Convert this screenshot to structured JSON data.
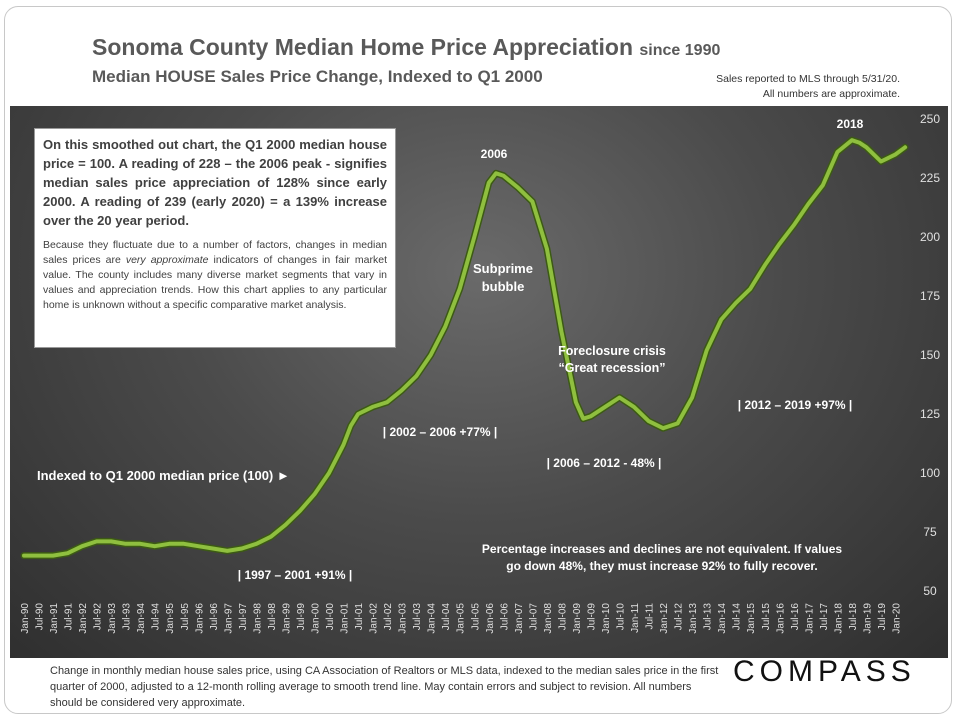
{
  "header": {
    "title": "Sonoma County Median Home Price Appreciation",
    "title_suffix": "since 1990",
    "subtitle": "Median HOUSE Sales Price Change, Indexed to Q1 2000",
    "note_line1": "Sales reported to MLS through 5/31/20.",
    "note_line2": "All numbers are approximate."
  },
  "infobox": {
    "para1": "On this smoothed out chart, the Q1 2000 median house price = 100. A reading of 228 – the 2006 peak - signifies median sales price appreciation of 128% since early 2000. A reading of 239 (early 2020) = a 139% increase over the 20 year period.",
    "para2_a": "Because they fluctuate due to a number of factors, changes in median sales prices are ",
    "para2_em": "very approximate",
    "para2_b": " indicators of changes in fair market value. The county includes many diverse market segments that vary in values and appreciation trends. How this chart applies to any particular home is unknown without a specific comparative market analysis."
  },
  "footer": {
    "text": "Change in monthly median house sales price, using CA Association of Realtors or MLS data, indexed to the median sales price in the first quarter of 2000, adjusted to a 12-month rolling average to smooth trend line. May contain errors and subject to revision. All numbers should be considered very approximate.",
    "logo": "COMPASS"
  },
  "colors": {
    "line": "#8fbf3f",
    "line_dark": "#3c5a14",
    "plot_bg": "#4b4b4b",
    "text_light": "#ffffff",
    "axis_text": "#e0e0e0"
  },
  "chart_data": {
    "type": "line",
    "ylim": [
      50,
      250
    ],
    "yticks": [
      50,
      75,
      100,
      125,
      150,
      175,
      200,
      225,
      250
    ],
    "xlim": [
      1990.0,
      2020.5
    ],
    "xtick_labels": [
      "Jan-90",
      "Jul-90",
      "Jan-91",
      "Jul-91",
      "Jan-92",
      "Jul-92",
      "Jan-93",
      "Jul-93",
      "Jan-94",
      "Jul-94",
      "Jan-95",
      "Jul-95",
      "Jan-96",
      "Jul-96",
      "Jan-97",
      "Jul-97",
      "Jan-98",
      "Jul-98",
      "Jan-99",
      "Jul-99",
      "Jan-00",
      "Jul-00",
      "Jan-01",
      "Jul-01",
      "Jan-02",
      "Jul-02",
      "Jan-03",
      "Jul-03",
      "Jan-04",
      "Jul-04",
      "Jan-05",
      "Jul-05",
      "Jan-06",
      "Jul-06",
      "Jan-07",
      "Jul-07",
      "Jan-08",
      "Jul-08",
      "Jan-09",
      "Jul-09",
      "Jan-10",
      "Jul-10",
      "Jan-11",
      "Jul-11",
      "Jan-12",
      "Jul-12",
      "Jan-13",
      "Jul-13",
      "Jan-14",
      "Jul-14",
      "Jan-15",
      "Jul-15",
      "Jan-16",
      "Jul-16",
      "Jan-17",
      "Jul-17",
      "Jan-18",
      "Jul-18",
      "Jan-19",
      "Jul-19",
      "Jan-20"
    ],
    "series": [
      {
        "x": [
          1990.0,
          1990.5,
          1991.0,
          1991.5,
          1992.0,
          1992.5,
          1993.0,
          1993.5,
          1994.0,
          1994.5,
          1995.0,
          1995.5,
          1996.0,
          1996.5,
          1997.0,
          1997.5,
          1998.0,
          1998.5,
          1999.0,
          1999.5,
          2000.0,
          2000.5,
          2001.0,
          2001.25,
          2001.5,
          2002.0,
          2002.5,
          2003.0,
          2003.5,
          2004.0,
          2004.5,
          2005.0,
          2005.5,
          2006.0,
          2006.25,
          2006.5,
          2007.0,
          2007.5,
          2008.0,
          2008.5,
          2009.0,
          2009.25,
          2009.5,
          2010.0,
          2010.5,
          2011.0,
          2011.5,
          2012.0,
          2012.5,
          2013.0,
          2013.5,
          2014.0,
          2014.5,
          2015.0,
          2015.5,
          2016.0,
          2016.5,
          2017.0,
          2017.5,
          2018.0,
          2018.5,
          2018.75,
          2019.0,
          2019.5,
          2020.0,
          2020.33
        ],
        "values": [
          65,
          65,
          65,
          66,
          69,
          71,
          71,
          70,
          70,
          69,
          70,
          70,
          69,
          68,
          67,
          68,
          70,
          73,
          78,
          84,
          91,
          100,
          112,
          120,
          125,
          128,
          130,
          135,
          141,
          150,
          162,
          178,
          200,
          223,
          227,
          226,
          221,
          215,
          195,
          160,
          130,
          123,
          124,
          128,
          132,
          128,
          122,
          119,
          121,
          132,
          152,
          165,
          172,
          178,
          188,
          197,
          205,
          214,
          222,
          236,
          241,
          240,
          238,
          232,
          235,
          238
        ]
      }
    ],
    "annotations": {
      "peak_2006": "2006",
      "peak_2018": "2018",
      "bubble_line1": "Subprime",
      "bubble_line2": "bubble",
      "crisis_line1": "Foreclosure crisis",
      "crisis_line2": "“Great recession”",
      "range_1997": "| 1997 – 2001 +91% |",
      "range_2002": "| 2002 – 2006 +77% |",
      "range_2006": "| 2006 – 2012 - 48% |",
      "range_2012": "| 2012 – 2019 +97% |",
      "indexed": "Indexed to Q1 2000 median price (100) ►",
      "pct_line1": "Percentage increases and declines are not equivalent. If values",
      "pct_line2": "go down 48%, they must increase 92% to fully recover."
    }
  }
}
